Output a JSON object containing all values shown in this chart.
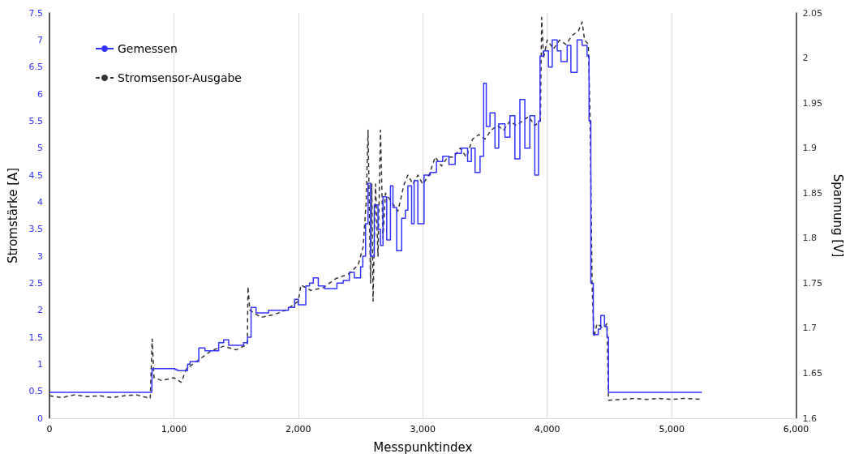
{
  "chart_data": {
    "type": "step",
    "xlabel": "Messpunktindex",
    "ylabel": "Stromstärke [A]",
    "y2label": "Spannung [V]",
    "xlim": [
      0,
      6000
    ],
    "xticks": [
      0,
      {
        "value": 1000,
        "label": "1,000"
      },
      {
        "value": 2000,
        "label": "2,000"
      },
      {
        "value": 3000,
        "label": "3,000"
      },
      {
        "value": 4000,
        "label": "4,000"
      },
      {
        "value": 5000,
        "label": "5,000"
      },
      {
        "value": 6000,
        "label": "6,000"
      }
    ],
    "ylim": [
      0,
      7.5
    ],
    "yticks": [
      0,
      0.5,
      1,
      1.5,
      2,
      2.5,
      3,
      3.5,
      4,
      4.5,
      5,
      5.5,
      6,
      6.5,
      7,
      7.5
    ],
    "y2lim": [
      1.6,
      2.05
    ],
    "y2ticks": [
      1.6,
      1.65,
      1.7,
      1.75,
      1.8,
      1.85,
      1.9,
      1.95,
      2,
      2.05
    ],
    "grid": "x",
    "legend": "top left",
    "marker": "none",
    "series": [
      {
        "name": "Gemessen",
        "color": "#3333ff",
        "line_style": "solid",
        "x": [
          0,
          822,
          825,
          1010,
          1030,
          1110,
          1130,
          1200,
          1250,
          1360,
          1400,
          1440,
          1560,
          1592,
          1620,
          1660,
          1760,
          1860,
          1920,
          1970,
          2000,
          2060,
          2090,
          2120,
          2160,
          2210,
          2310,
          2360,
          2410,
          2450,
          2500,
          2518,
          2540,
          2560,
          2580,
          2610,
          2640,
          2660,
          2680,
          2710,
          2740,
          2760,
          2790,
          2830,
          2860,
          2880,
          2910,
          2930,
          2960,
          3010,
          3060,
          3110,
          3160,
          3210,
          3260,
          3310,
          3360,
          3390,
          3420,
          3460,
          3489,
          3510,
          3540,
          3580,
          3610,
          3660,
          3700,
          3740,
          3780,
          3820,
          3860,
          3900,
          3930,
          3942,
          3970,
          4010,
          4040,
          4080,
          4110,
          4160,
          4190,
          4240,
          4280,
          4320,
          4336,
          4350,
          4370,
          4410,
          4430,
          4460,
          4480,
          4492,
          4800,
          5243
        ],
        "values": [
          0.48,
          0.48,
          0.92,
          0.9,
          0.88,
          1.0,
          1.05,
          1.3,
          1.25,
          1.4,
          1.45,
          1.35,
          1.4,
          1.5,
          2.05,
          1.95,
          2.0,
          2.0,
          2.05,
          2.2,
          2.1,
          2.45,
          2.5,
          2.6,
          2.45,
          2.4,
          2.5,
          2.55,
          2.7,
          2.6,
          2.8,
          3.0,
          3.6,
          4.35,
          3.0,
          3.95,
          3.5,
          3.2,
          4.1,
          3.3,
          4.3,
          3.9,
          3.1,
          3.7,
          3.85,
          4.3,
          3.6,
          4.4,
          3.6,
          4.5,
          4.55,
          4.75,
          4.85,
          4.7,
          4.9,
          5.0,
          4.75,
          5.0,
          4.55,
          4.85,
          6.2,
          5.4,
          5.65,
          5.0,
          5.45,
          5.2,
          5.6,
          4.8,
          5.9,
          5.0,
          5.6,
          4.5,
          5.5,
          6.7,
          6.8,
          6.5,
          7.0,
          6.8,
          6.6,
          6.9,
          6.4,
          7.0,
          6.9,
          6.7,
          5.5,
          2.5,
          1.55,
          1.65,
          1.9,
          1.7,
          1.5,
          0.48,
          0.48,
          0.49
        ]
      },
      {
        "name": "Stromsensor-Ausgabe",
        "type": "line",
        "axis": "y2",
        "color": "#333333",
        "line_style": "dashed",
        "x": [
          0,
          100,
          200,
          300,
          400,
          500,
          600,
          700,
          810,
          825,
          840,
          900,
          1000,
          1060,
          1100,
          1200,
          1300,
          1400,
          1500,
          1590,
          1595,
          1610,
          1700,
          1800,
          1900,
          2000,
          2020,
          2100,
          2200,
          2300,
          2400,
          2480,
          2520,
          2545,
          2560,
          2580,
          2590,
          2600,
          2620,
          2640,
          2660,
          2680,
          2700,
          2750,
          2800,
          2850,
          2880,
          2920,
          2960,
          3000,
          3050,
          3100,
          3150,
          3200,
          3250,
          3300,
          3350,
          3400,
          3450,
          3500,
          3550,
          3600,
          3650,
          3700,
          3750,
          3800,
          3850,
          3900,
          3945,
          3955,
          3970,
          4000,
          4050,
          4100,
          4150,
          4200,
          4250,
          4280,
          4300,
          4330,
          4345,
          4360,
          4375,
          4400,
          4450,
          4480,
          4492,
          4600,
          4700,
          4800,
          4900,
          5000,
          5100,
          5243
        ],
        "values": [
          1.625,
          1.623,
          1.626,
          1.624,
          1.625,
          1.623,
          1.625,
          1.626,
          1.622,
          1.688,
          1.645,
          1.642,
          1.645,
          1.64,
          1.655,
          1.665,
          1.675,
          1.68,
          1.676,
          1.682,
          1.746,
          1.72,
          1.712,
          1.715,
          1.72,
          1.73,
          1.748,
          1.742,
          1.745,
          1.755,
          1.76,
          1.77,
          1.79,
          1.84,
          1.92,
          1.75,
          1.86,
          1.73,
          1.86,
          1.78,
          1.92,
          1.8,
          1.85,
          1.84,
          1.83,
          1.86,
          1.87,
          1.86,
          1.87,
          1.86,
          1.87,
          1.89,
          1.88,
          1.89,
          1.89,
          1.9,
          1.89,
          1.91,
          1.915,
          1.91,
          1.92,
          1.925,
          1.92,
          1.93,
          1.925,
          1.93,
          1.935,
          1.925,
          1.93,
          2.045,
          2.0,
          2.02,
          2.01,
          2.02,
          2.015,
          2.025,
          2.03,
          2.04,
          2.02,
          2.015,
          1.93,
          1.75,
          1.69,
          1.705,
          1.7,
          1.705,
          1.62,
          1.621,
          1.622,
          1.621,
          1.622,
          1.621,
          1.622,
          1.621
        ]
      }
    ]
  }
}
